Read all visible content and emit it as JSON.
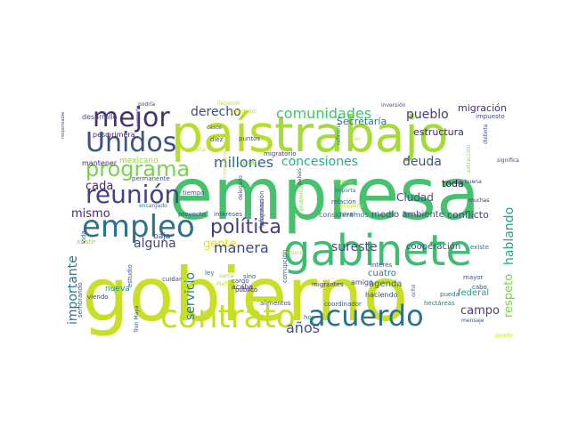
{
  "words": [
    {
      "text": "gobierno",
      "color": "#c9df25"
    },
    {
      "text": "empresa",
      "color": "#47c16e"
    },
    {
      "text": "país",
      "color": "#b8de29"
    },
    {
      "text": "trabajo",
      "color": "#a5db36"
    },
    {
      "text": "gabinete",
      "color": "#3fbc73"
    },
    {
      "text": "acuerdo",
      "color": "#2c728e"
    },
    {
      "text": "contrato",
      "color": "#c2df23"
    },
    {
      "text": "empleo",
      "color": "#2c728e"
    },
    {
      "text": "Unidos",
      "color": "#3b528b"
    },
    {
      "text": "mejor",
      "color": "#472e7c"
    },
    {
      "text": "reunión",
      "color": "#404387"
    },
    {
      "text": "programa",
      "color": "#7ad151"
    },
    {
      "text": "política",
      "color": "#433e85"
    },
    {
      "text": "millones",
      "color": "#31688e"
    },
    {
      "text": "comunidades",
      "color": "#4ac16d"
    },
    {
      "text": "concesiones",
      "color": "#29af7f"
    },
    {
      "text": "deuda",
      "color": "#3b528b"
    },
    {
      "text": "derecho",
      "color": "#3e4a89"
    },
    {
      "text": "pueblo",
      "color": "#443a83"
    },
    {
      "text": "migración",
      "color": "#472d7b"
    },
    {
      "text": "alguna",
      "color": "#404387"
    },
    {
      "text": "cada",
      "color": "#482878"
    },
    {
      "text": "mismo",
      "color": "#472c7a"
    },
    {
      "text": "gente",
      "color": "#e5e419"
    },
    {
      "text": "manera",
      "color": "#3e4989"
    },
    {
      "text": "años",
      "color": "#3b528b"
    },
    {
      "text": "sureste",
      "color": "#3e4a89"
    },
    {
      "text": "campo",
      "color": "#433e85"
    },
    {
      "text": "hablando",
      "color": "#22a785"
    },
    {
      "text": "respeto",
      "color": "#7ad151"
    },
    {
      "text": "servicio",
      "color": "#2a788e"
    },
    {
      "text": "importante",
      "color": "#2a788e"
    },
    {
      "text": "federal",
      "color": "#1f9a8a"
    },
    {
      "text": "cooperación",
      "color": "#3e4a89"
    },
    {
      "text": "conflicto",
      "color": "#414487"
    },
    {
      "text": "Ciudad",
      "color": "#3b528b"
    },
    {
      "text": "toda",
      "color": "#440154"
    },
    {
      "text": "estructura",
      "color": "#482475"
    },
    {
      "text": "Secretaría",
      "color": "#2c728e"
    },
    {
      "text": "agenda",
      "color": "#30678d"
    },
    {
      "text": "cuatro",
      "color": "#2a768e"
    },
    {
      "text": "medio ambiente",
      "color": "#3f4788"
    },
    {
      "text": "mexicano",
      "color": "#8ed645"
    },
    {
      "text": "peso",
      "color": "#46337e"
    },
    {
      "text": "primera",
      "color": "#481a6c"
    },
    {
      "text": "desarrollo",
      "color": "#3e4c8a"
    },
    {
      "text": "baja",
      "color": "#3e4c8a"
    },
    {
      "text": "nueva",
      "color": "#1f948c"
    },
    {
      "text": "acaba",
      "color": "#46337e"
    },
    {
      "text": "mantener",
      "color": "#482374"
    },
    {
      "text": "permanente",
      "color": "#3b528b"
    },
    {
      "text": "proyecto",
      "color": "#3e4c8a"
    },
    {
      "text": "intereses",
      "color": "#3b528b"
    },
    {
      "text": "información",
      "color": "#3b528b"
    },
    {
      "text": "consideramos",
      "color": "#2d6f8e"
    },
    {
      "text": "nivel",
      "color": "#33638d"
    },
    {
      "text": "relación",
      "color": "#3b528b"
    },
    {
      "text": "importa",
      "color": "#2a788e"
    },
    {
      "text": "buena",
      "color": "#443983"
    },
    {
      "text": "muchas",
      "color": "#482878"
    },
    {
      "text": "existe",
      "color": "#2a788e"
    },
    {
      "text": "mayor",
      "color": "#3b528b"
    },
    {
      "text": "cabo",
      "color": "#3e4a89"
    },
    {
      "text": "pueda",
      "color": "#30678d"
    },
    {
      "text": "hectáreas",
      "color": "#287c8e"
    },
    {
      "text": "coordinador",
      "color": "#3b528b"
    },
    {
      "text": "mensaje",
      "color": "#3b528b"
    },
    {
      "text": "haciendo",
      "color": "#3e4a89"
    },
    {
      "text": "amigo",
      "color": "#3e4a89"
    },
    {
      "text": "migrantes",
      "color": "#472a7a"
    },
    {
      "text": "corrupción",
      "color": "#3b528b"
    },
    {
      "text": "sino",
      "color": "#39568c"
    },
    {
      "text": "cargo",
      "color": "#3b528b"
    },
    {
      "text": "público",
      "color": "#482878"
    },
    {
      "text": "alimentos",
      "color": "#3e4c8a"
    },
    {
      "text": "hoy",
      "color": "#2a788e"
    },
    {
      "text": "cuidar",
      "color": "#3b528b"
    },
    {
      "text": "estudio",
      "color": "#3b528b"
    },
    {
      "text": "interés",
      "color": "#3e4c8a"
    },
    {
      "text": "ocho",
      "color": "#3b528b"
    },
    {
      "text": "ley",
      "color": "#2a788e"
    },
    {
      "text": "viendo",
      "color": "#3e4c8a"
    },
    {
      "text": "encargado",
      "color": "#2a788e"
    },
    {
      "text": "asistir",
      "color": "#8ed645"
    },
    {
      "text": "sembrando",
      "color": "#3b528b"
    },
    {
      "text": "vida",
      "color": "#3b528b"
    },
    {
      "text": "Tren Maya",
      "color": "#3b528b"
    },
    {
      "text": "tiempo",
      "color": "#3b528b"
    },
    {
      "text": "diez",
      "color": "#3e4a89"
    },
    {
      "text": "puntos",
      "color": "#3e4c8a"
    },
    {
      "text": "migratorio",
      "color": "#46337e"
    },
    {
      "text": "evitar",
      "color": "#8ed645"
    },
    {
      "text": "países",
      "color": "#3e4c8a"
    },
    {
      "text": "problema",
      "color": "#8ed645"
    },
    {
      "text": "mejorar",
      "color": "#8ed645"
    },
    {
      "text": "propósito",
      "color": "#c2df23"
    },
    {
      "text": "preguntas",
      "color": "#3e4c8a"
    },
    {
      "text": "delegado",
      "color": "#3e4c8a"
    },
    {
      "text": "compañeros",
      "color": "#c2df23"
    },
    {
      "text": "vista",
      "color": "#c2df23"
    },
    {
      "text": "refinería",
      "color": "#2a788e"
    },
    {
      "text": "casos",
      "color": "#3e4c8a"
    },
    {
      "text": "llegando",
      "color": "#c2df23"
    },
    {
      "text": "alrededor",
      "color": "#c2df23"
    },
    {
      "text": "podría",
      "color": "#3e4c8a"
    },
    {
      "text": "responsable",
      "color": "#3e4c8a"
    },
    {
      "text": "campaña",
      "color": "#3e4c8a"
    },
    {
      "text": "inversión",
      "color": "#3e4c8a"
    },
    {
      "text": "impuesto",
      "color": "#3e4c8a"
    },
    {
      "text": "distinta",
      "color": "#3e4c8a"
    },
    {
      "text": "extracción",
      "color": "#8ed645"
    },
    {
      "text": "significa",
      "color": "#3e4c8a"
    },
    {
      "text": "bien",
      "color": "#c2df23"
    },
    {
      "text": "Mañana",
      "color": "#c2df23"
    },
    {
      "text": "compra",
      "color": "#c2df23"
    },
    {
      "text": "cerca",
      "color": "#8ed645"
    },
    {
      "text": "pronto",
      "color": "#c2df23"
    }
  ]
}
